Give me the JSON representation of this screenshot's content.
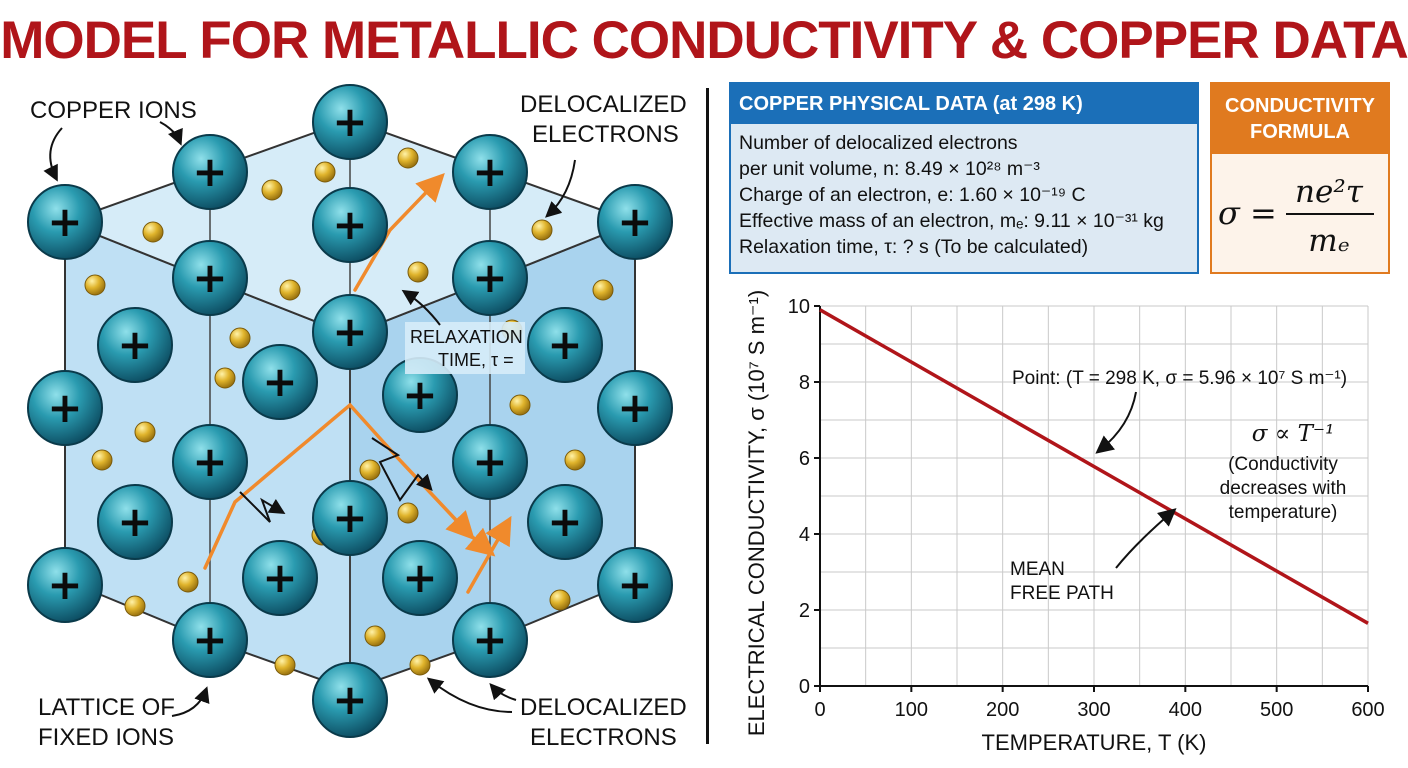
{
  "title": "MODEL FOR METALLIC CONDUCTIVITY & COPPER DATA",
  "lattice": {
    "label_copper_ions": "COPPER IONS",
    "label_delocalized_top": [
      "DELOCALIZED",
      "ELECTRONS"
    ],
    "label_relaxation": [
      "RELAXATION",
      "TIME, τ ="
    ],
    "label_lattice": [
      "LATTICE OF",
      "FIXED IONS"
    ],
    "label_delocalized_bottom": [
      "DELOCALIZED",
      "ELECTRONS"
    ],
    "ion_symbol": "+",
    "ion_color": "#1f8a9e",
    "electron_color": "#d4a520",
    "path_color": "#f08a2c"
  },
  "copper_data": {
    "heading": "COPPER PHYSICAL DATA (at 298 K)",
    "lines": [
      "Number of delocalized electrons",
      "per unit volume, n: 8.49 × 10²⁸ m⁻³",
      "Charge of an electron, e: 1.60 × 10⁻¹⁹ C",
      "Effective mass of an electron, mₑ: 9.11 × 10⁻³¹ kg",
      "Relaxation time, τ: ? s (To be calculated)"
    ]
  },
  "formula": {
    "heading": [
      "CONDUCTIVITY",
      "FORMULA"
    ],
    "lhs": "σ =",
    "numerator": "ne²τ",
    "denominator": "mₑ"
  },
  "chart_data": {
    "type": "line",
    "x": [
      0,
      600
    ],
    "series": [
      {
        "values": [
          9.9,
          1.65
        ]
      }
    ],
    "xlabel": "TEMPERATURE, T (K)",
    "ylabel": "ELECTRICAL CONDUCTIVITY, σ (10⁷ S m⁻¹)",
    "xlim": [
      0,
      600
    ],
    "ylim": [
      0,
      10
    ],
    "xticks": [
      0,
      100,
      200,
      300,
      400,
      500,
      600
    ],
    "yticks": [
      0,
      2,
      4,
      6,
      8,
      10
    ],
    "grid": true,
    "line_color": "#b0151a",
    "annotations": {
      "point": "Point: (T = 298 K, σ = 5.96 × 10⁷ S m⁻¹)",
      "proportional": "σ ∝ T⁻¹",
      "note": [
        "(Conductivity",
        "decreases with",
        "temperature)"
      ],
      "mean_free_path": [
        "MEAN",
        "FREE PATH"
      ]
    }
  }
}
